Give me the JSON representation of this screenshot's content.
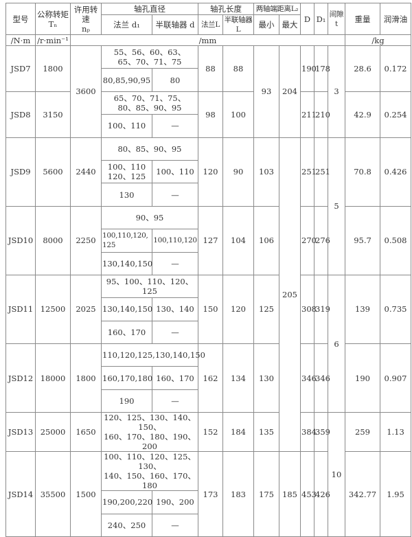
{
  "header": {
    "model": "型号",
    "torque": "公称转矩",
    "torque_sym": "Tₙ",
    "speed": "许用转速",
    "speed_sym": "nₚ",
    "bore_dia": "轴孔直径",
    "bore_len": "轴孔长度",
    "distance": "两轴端距离L₂",
    "D": "D",
    "D1": "D₁",
    "gap": "间隙",
    "gap_sym": "t",
    "weight": "重量",
    "oil": "润滑油",
    "flange_d1": "法兰 d₁",
    "half_d": "半联轴器 d",
    "flange_L": "法兰L",
    "half_L": "半联轴器\nL",
    "min": "最小",
    "max": "最大",
    "unit_torque": "/N·m",
    "unit_speed": "/r·min⁻¹",
    "unit_mm": "/mm",
    "unit_kg": "/kg"
  },
  "rows": [
    {
      "model": "JSD7",
      "torque": "1800",
      "speed": "3600",
      "bore": [
        {
          "both": "55、56、60、63、\n65、70、71、75"
        },
        {
          "flange": "80,85,90,95",
          "half": "80"
        }
      ],
      "flange_L": "88",
      "half_L": "88",
      "min": "93",
      "max": "204",
      "D": "190",
      "D1": "178",
      "gap": "3",
      "weight": "28.6",
      "oil": "0.172"
    },
    {
      "model": "JSD8",
      "torque": "3150",
      "bore": [
        {
          "both": "65、70、71、75、\n80、85、90、95"
        },
        {
          "flange": "100、110",
          "half": "—"
        }
      ],
      "flange_L": "98",
      "half_L": "100",
      "D": "211",
      "D1": "210",
      "weight": "42.9",
      "oil": "0.254"
    },
    {
      "model": "JSD9",
      "torque": "5600",
      "speed": "2440",
      "bore": [
        {
          "both": "80、85、90、95"
        },
        {
          "flange": "100、110\n120、125",
          "half": "100、110"
        },
        {
          "flange": "130",
          "half": "—"
        }
      ],
      "flange_L": "120",
      "half_L": "90",
      "min": "103",
      "max": "205",
      "D": "251",
      "D1": "251",
      "gap": "5",
      "weight": "70.8",
      "oil": "0.426"
    },
    {
      "model": "JSD10",
      "torque": "8000",
      "speed": "2250",
      "bore": [
        {
          "both": "90、95"
        },
        {
          "flange": "100,110,120,\n125",
          "half": "100,110,120"
        },
        {
          "flange": "130,140,150",
          "half": "—"
        }
      ],
      "flange_L": "127",
      "half_L": "104",
      "min": "106",
      "D": "270",
      "D1": "276",
      "weight": "95.7",
      "oil": "0.508"
    },
    {
      "model": "JSD11",
      "torque": "12500",
      "speed": "2025",
      "bore": [
        {
          "both": "95、100、110、120、125"
        },
        {
          "flange": "130,140,150",
          "half": "130、140"
        },
        {
          "flange": "160、170",
          "half": "—"
        }
      ],
      "flange_L": "150",
      "half_L": "120",
      "min": "125",
      "D": "308",
      "D1": "319",
      "gap": "6",
      "weight": "139",
      "oil": "0.735"
    },
    {
      "model": "JSD12",
      "torque": "18000",
      "speed": "1800",
      "bore": [
        {
          "both": "110,120,125,130,140,150"
        },
        {
          "flange": "160,170,180",
          "half": "160、170"
        },
        {
          "flange": "190",
          "half": "—"
        }
      ],
      "flange_L": "162",
      "half_L": "134",
      "min": "130",
      "D": "346",
      "D1": "346",
      "weight": "190",
      "oil": "0.907"
    },
    {
      "model": "JSD13",
      "torque": "25000",
      "speed": "1650",
      "bore": [
        {
          "both": "120、125、130、140、150、\n160、170、180、190、200"
        }
      ],
      "flange_L": "152",
      "half_L": "184",
      "min": "135",
      "D": "384",
      "D1": "359",
      "gap": "10",
      "weight": "259",
      "oil": "1.13"
    },
    {
      "model": "JSD14",
      "torque": "35500",
      "speed": "1500",
      "bore": [
        {
          "both": "100、110、120、125、130、\n140、150、160、170、180"
        },
        {
          "flange": "190,200,220",
          "half": "190、200"
        },
        {
          "flange": "240、250",
          "half": "—"
        }
      ],
      "flange_L": "173",
      "half_L": "183",
      "min": "175",
      "max": "185",
      "D": "453",
      "D1": "426",
      "weight": "342.77",
      "oil": "1.95"
    }
  ]
}
